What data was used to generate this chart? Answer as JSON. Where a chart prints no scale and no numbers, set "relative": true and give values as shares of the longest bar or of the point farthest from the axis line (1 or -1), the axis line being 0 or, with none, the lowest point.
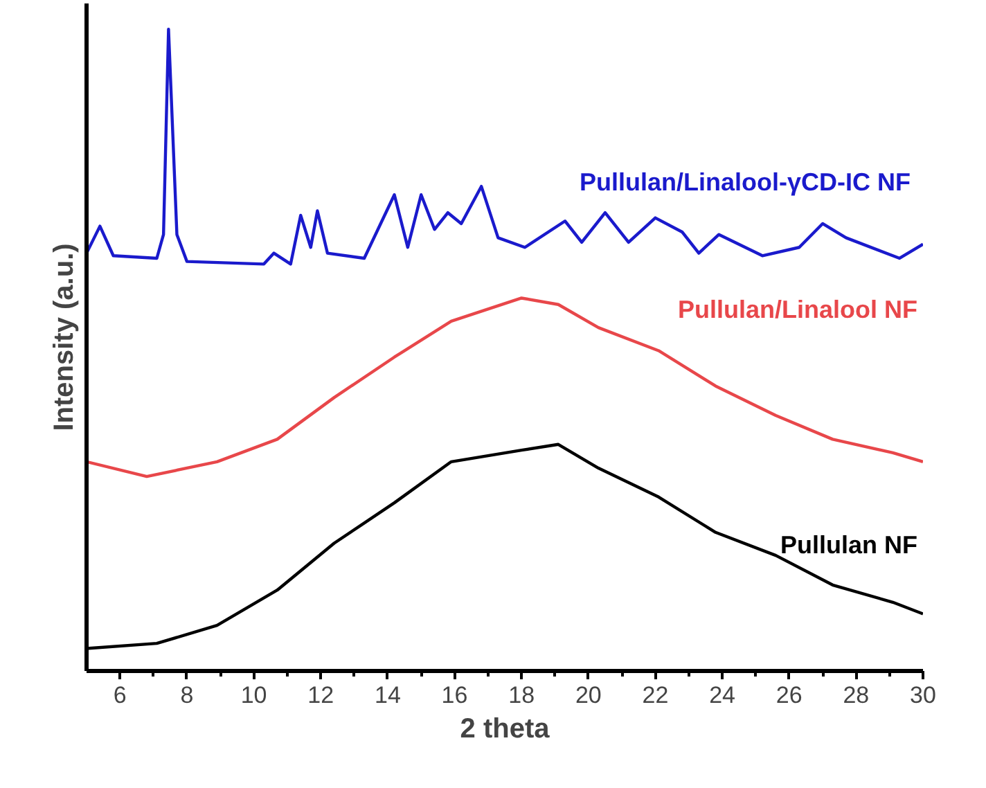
{
  "chart_data": {
    "type": "line",
    "xlabel": "2 theta",
    "ylabel": "Intensity (a.u.)",
    "relative": true,
    "xlim": [
      5,
      30
    ],
    "xticks": [
      6,
      8,
      10,
      12,
      14,
      16,
      18,
      20,
      22,
      24,
      26,
      28,
      30
    ],
    "grid": false,
    "legend": false,
    "marker": "none",
    "line_style": "solid",
    "series": [
      {
        "name": "Pullulan/Linalool-γCD-IC  NF",
        "color": "#1a1acc",
        "x": [
          5.0,
          5.4,
          5.8,
          7.1,
          7.3,
          7.45,
          7.7,
          8.0,
          10.3,
          10.6,
          11.1,
          11.4,
          11.7,
          11.9,
          12.2,
          13.3,
          14.2,
          14.6,
          15.0,
          15.4,
          15.8,
          16.2,
          16.8,
          17.3,
          18.1,
          19.3,
          19.8,
          20.5,
          21.2,
          22.0,
          22.8,
          23.3,
          23.9,
          25.2,
          26.3,
          27.0,
          27.7,
          29.3,
          30.0
        ],
        "values": [
          0.651,
          0.693,
          0.647,
          0.643,
          0.68,
          1.0,
          0.68,
          0.638,
          0.634,
          0.651,
          0.634,
          0.71,
          0.66,
          0.717,
          0.651,
          0.643,
          0.742,
          0.66,
          0.742,
          0.688,
          0.714,
          0.697,
          0.755,
          0.675,
          0.66,
          0.701,
          0.668,
          0.714,
          0.668,
          0.706,
          0.684,
          0.651,
          0.68,
          0.647,
          0.66,
          0.697,
          0.675,
          0.643,
          0.665
        ]
      },
      {
        "name": "Pullulan/Linalool NF",
        "color": "#e8474a",
        "x": [
          5.0,
          6.8,
          8.9,
          10.7,
          12.4,
          14.2,
          15.9,
          18.0,
          19.1,
          20.3,
          22.1,
          23.8,
          25.6,
          27.3,
          29.1,
          30.0
        ],
        "values": [
          0.326,
          0.303,
          0.326,
          0.361,
          0.426,
          0.489,
          0.545,
          0.581,
          0.571,
          0.535,
          0.499,
          0.444,
          0.398,
          0.361,
          0.34,
          0.326
        ]
      },
      {
        "name": "Pullulan NF",
        "color": "#000000",
        "x": [
          5.0,
          7.1,
          8.9,
          10.7,
          12.4,
          14.2,
          15.9,
          18.0,
          19.1,
          20.3,
          22.1,
          23.8,
          25.6,
          27.3,
          29.1,
          30.0
        ],
        "values": [
          0.035,
          0.043,
          0.071,
          0.126,
          0.199,
          0.262,
          0.326,
          0.344,
          0.353,
          0.316,
          0.271,
          0.216,
          0.18,
          0.134,
          0.107,
          0.089
        ]
      }
    ]
  }
}
